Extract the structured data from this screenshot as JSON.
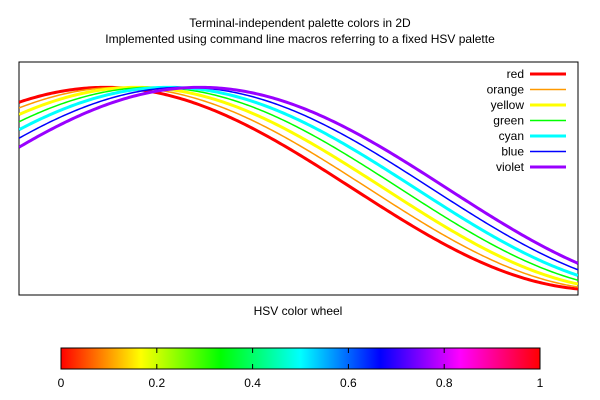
{
  "chart_data": {
    "type": "line",
    "title_line1": "Terminal-independent palette colors in 2D",
    "title_line2": "Implemented using command line macros referring to a fixed HSV palette",
    "xlabel": "HSV color wheel",
    "ylabel": "",
    "grid": false,
    "legend_position": "top-right",
    "xlim": [
      -0.55,
      3.0
    ],
    "ylim": [
      -1.05,
      1.25
    ],
    "x_ticks_shown": false,
    "y_ticks_shown": false,
    "series": [
      {
        "name": "red",
        "color": "#ff0000",
        "width": 3,
        "phase": 0.0
      },
      {
        "name": "orange",
        "color": "#ff9900",
        "width": 1.5,
        "phase": 0.1
      },
      {
        "name": "yellow",
        "color": "#ffff00",
        "width": 3,
        "phase": 0.2
      },
      {
        "name": "green",
        "color": "#00ff00",
        "width": 1.5,
        "phase": 0.3
      },
      {
        "name": "cyan",
        "color": "#00ffff",
        "width": 3,
        "phase": 0.4
      },
      {
        "name": "blue",
        "color": "#0000ff",
        "width": 1.5,
        "phase": 0.5
      },
      {
        "name": "violet",
        "color": "#9900ff",
        "width": 3,
        "phase": 0.6
      }
    ]
  },
  "colorbar": {
    "tick_labels": [
      "0",
      "0.2",
      "0.4",
      "0.6",
      "0.8",
      "1"
    ],
    "tick_values": [
      0,
      0.2,
      0.4,
      0.6,
      0.8,
      1.0
    ],
    "palette": [
      "#ff0000",
      "#ffff00",
      "#00ff00",
      "#00ffff",
      "#0000ff",
      "#ff00ff",
      "#ff0000"
    ]
  }
}
